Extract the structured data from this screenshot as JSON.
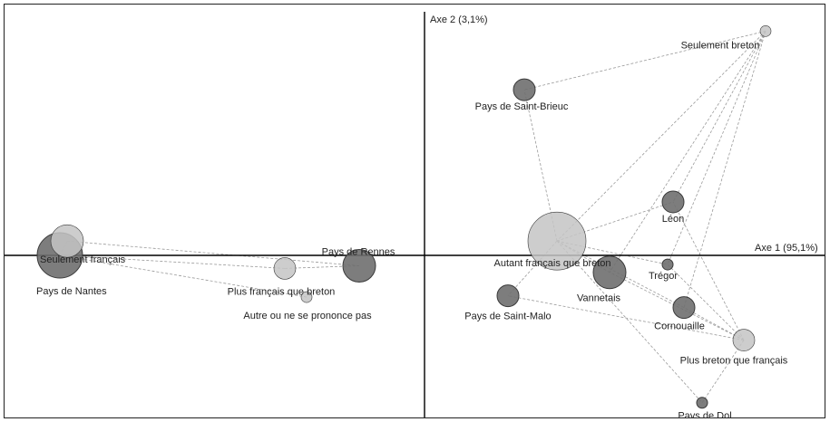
{
  "chart_data": {
    "type": "scatter",
    "subtype": "correspondence-analysis-bubble-map",
    "title": "",
    "axis1_label": "Axe 1 (95,1%)",
    "axis2_label": "Axe 2 (3,1%)",
    "grid": false,
    "colors": {
      "language": "#c4c4c4",
      "region": "#6f6f6f",
      "stroke": "#3a3a3a",
      "link": "#9a9a9a"
    },
    "language_points": [
      {
        "key": "sf",
        "label": "Seulement français",
        "x": -1.97,
        "y": 0.22,
        "size": 3
      },
      {
        "key": "pfqb",
        "label": "Plus français que breton",
        "x": -0.77,
        "y": -0.2,
        "size": 2
      },
      {
        "key": "anp",
        "label": "Autre ou ne se prononce pas",
        "x": -0.65,
        "y": -0.64,
        "size": 1
      },
      {
        "key": "afqb",
        "label": "Autant français que breton",
        "x": 0.73,
        "y": 0.22,
        "size": 5
      },
      {
        "key": "pbqf",
        "label": "Plus breton que français",
        "x": 1.76,
        "y": -1.3,
        "size": 2
      },
      {
        "key": "sb",
        "label": "Seulement breton",
        "x": 1.88,
        "y": 3.44,
        "size": 1
      }
    ],
    "region_points": [
      {
        "key": "pn",
        "label": "Pays de Nantes",
        "x": -2.01,
        "y": 0.0,
        "size": 4
      },
      {
        "key": "pr",
        "label": "Pays de Rennes",
        "x": -0.36,
        "y": -0.16,
        "size": 3
      },
      {
        "key": "psb",
        "label": "Pays de Saint-Brieuc",
        "x": 0.55,
        "y": 2.54,
        "size": 2
      },
      {
        "key": "leo",
        "label": "Léon",
        "x": 1.37,
        "y": 0.82,
        "size": 2
      },
      {
        "key": "tre",
        "label": "Trégor",
        "x": 1.34,
        "y": -0.14,
        "size": 1
      },
      {
        "key": "van",
        "label": "Vannetais",
        "x": 1.02,
        "y": -0.26,
        "size": 3
      },
      {
        "key": "psm",
        "label": "Pays de Saint-Malo",
        "x": 0.46,
        "y": -0.62,
        "size": 2
      },
      {
        "key": "cor",
        "label": "Cornouaille",
        "x": 1.43,
        "y": -0.8,
        "size": 2
      },
      {
        "key": "pdo",
        "label": "Pays de Dol",
        "x": 1.53,
        "y": -2.26,
        "size": 1
      }
    ],
    "links": [
      [
        "sf",
        "pn"
      ],
      [
        "pfqb",
        "pn"
      ],
      [
        "pfqb",
        "pr"
      ],
      [
        "anp",
        "pn"
      ],
      [
        "sf",
        "pr"
      ],
      [
        "afqb",
        "psb"
      ],
      [
        "afqb",
        "leo"
      ],
      [
        "afqb",
        "tre"
      ],
      [
        "afqb",
        "van"
      ],
      [
        "afqb",
        "psm"
      ],
      [
        "afqb",
        "cor"
      ],
      [
        "afqb",
        "pdo"
      ],
      [
        "sb",
        "psb"
      ],
      [
        "sb",
        "leo"
      ],
      [
        "sb",
        "tre"
      ],
      [
        "sb",
        "van"
      ],
      [
        "sb",
        "cor"
      ],
      [
        "sb",
        "afqb"
      ],
      [
        "pbqf",
        "leo"
      ],
      [
        "pbqf",
        "tre"
      ],
      [
        "pbqf",
        "van"
      ],
      [
        "pbqf",
        "psm"
      ],
      [
        "pbqf",
        "cor"
      ],
      [
        "pbqf",
        "pdo"
      ]
    ]
  }
}
